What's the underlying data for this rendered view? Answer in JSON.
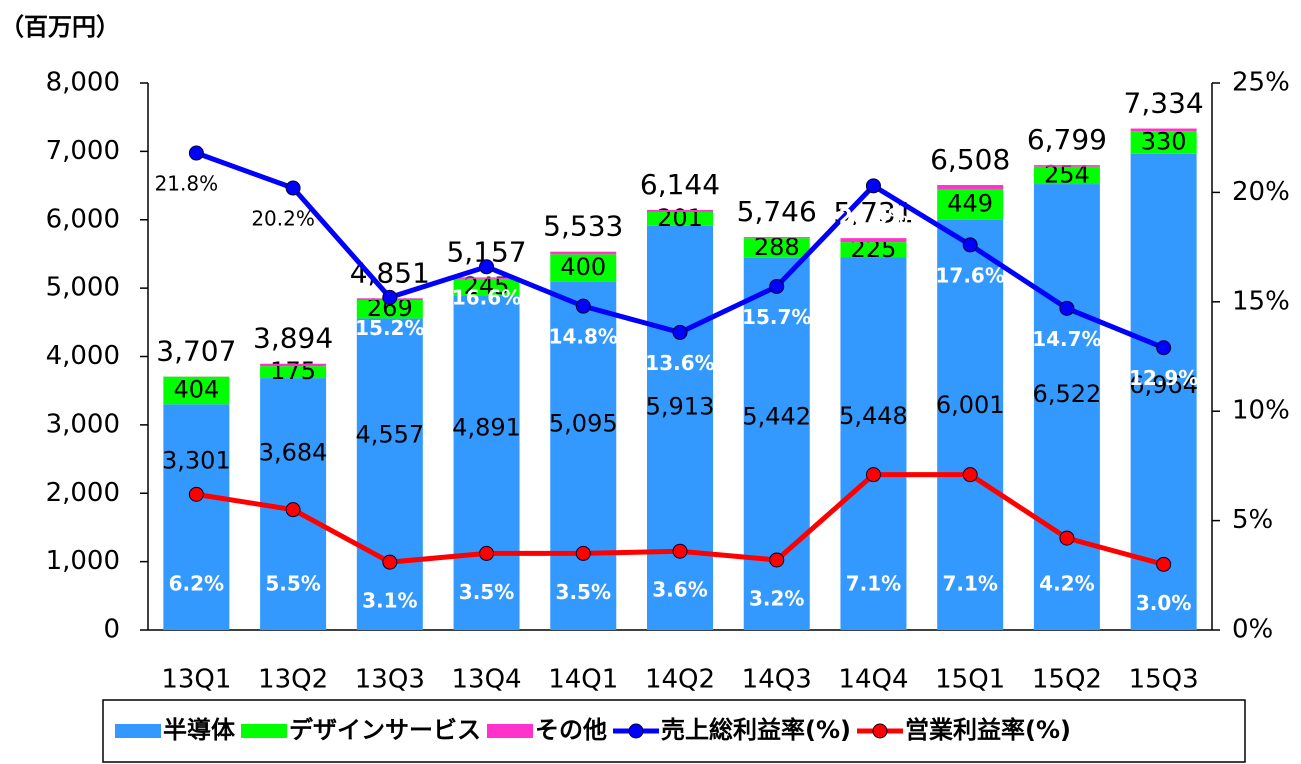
{
  "chart_data": {
    "type": "bar",
    "unit_label": "（百万円）",
    "categories": [
      "13Q1",
      "13Q2",
      "13Q3",
      "13Q4",
      "14Q1",
      "14Q2",
      "14Q3",
      "14Q4",
      "15Q1",
      "15Q2",
      "15Q3"
    ],
    "series": [
      {
        "name": "半導体",
        "color": "#3399ff",
        "values": [
          3301,
          3684,
          4557,
          4891,
          5095,
          5913,
          5442,
          5448,
          6001,
          6522,
          6964
        ],
        "value_labels": [
          "3,301",
          "3,684",
          "4,557",
          "4,891",
          "5,095",
          "5,913",
          "5,442",
          "5,448",
          "6,001",
          "6,522",
          "6,964"
        ]
      },
      {
        "name": "デザインサービス",
        "color": "#00ff00",
        "values": [
          404,
          175,
          269,
          245,
          400,
          201,
          288,
          225,
          449,
          254,
          330
        ]
      },
      {
        "name": "その他",
        "color": "#ff33cc",
        "values": [
          2,
          35,
          25,
          21,
          38,
          30,
          16,
          58,
          58,
          23,
          40
        ]
      },
      {
        "name": "売上総利益率(%)",
        "type": "line",
        "axis": "y2",
        "color": "#0000ff",
        "values": [
          21.8,
          20.2,
          15.2,
          16.6,
          14.8,
          13.6,
          15.7,
          20.3,
          17.6,
          14.7,
          12.9
        ],
        "value_labels": [
          "21.8%",
          "20.2%",
          "15.2%",
          "16.6%",
          "14.8%",
          "13.6%",
          "15.7%",
          "20.3%",
          "17.6%",
          "14.7%",
          "12.9%"
        ]
      },
      {
        "name": "営業利益率(%)",
        "type": "line",
        "axis": "y2",
        "color": "#ff0000",
        "values": [
          6.2,
          5.5,
          3.1,
          3.5,
          3.5,
          3.6,
          3.2,
          7.1,
          7.1,
          4.2,
          3.0
        ],
        "value_labels": [
          "6.2%",
          "5.5%",
          "3.1%",
          "3.5%",
          "3.5%",
          "3.6%",
          "3.2%",
          "7.1%",
          "7.1%",
          "4.2%",
          "3.0%"
        ]
      }
    ],
    "totals": [
      3707,
      3894,
      4851,
      5157,
      5533,
      6144,
      5746,
      5731,
      6508,
      6799,
      7334
    ],
    "total_labels": [
      "3,707",
      "3,894",
      "4,851",
      "5,157",
      "5,533",
      "6,144",
      "5,746",
      "5,731",
      "6,508",
      "6,799",
      "7,334"
    ],
    "ylim": [
      0,
      8000
    ],
    "yticks": [
      0,
      {
        "value": 1000,
        "label": "1,000"
      },
      {
        "value": 2000,
        "label": "2,000"
      },
      {
        "value": 3000,
        "label": "3,000"
      },
      {
        "value": 4000,
        "label": "4,000"
      },
      {
        "value": 5000,
        "label": "5,000"
      },
      {
        "value": 6000,
        "label": "6,000"
      },
      {
        "value": 7000,
        "label": "7,000"
      },
      {
        "value": 8000,
        "label": "8,000"
      }
    ],
    "y2lim": [
      0,
      25
    ],
    "y2ticks": [
      {
        "value": 0,
        "label": "0%"
      },
      {
        "value": 5,
        "label": "5%"
      },
      {
        "value": 10,
        "label": "10%"
      },
      {
        "value": 15,
        "label": "15%"
      },
      {
        "value": 20,
        "label": "20%"
      },
      {
        "value": 25,
        "label": "25%"
      }
    ],
    "legend": "bottom"
  }
}
